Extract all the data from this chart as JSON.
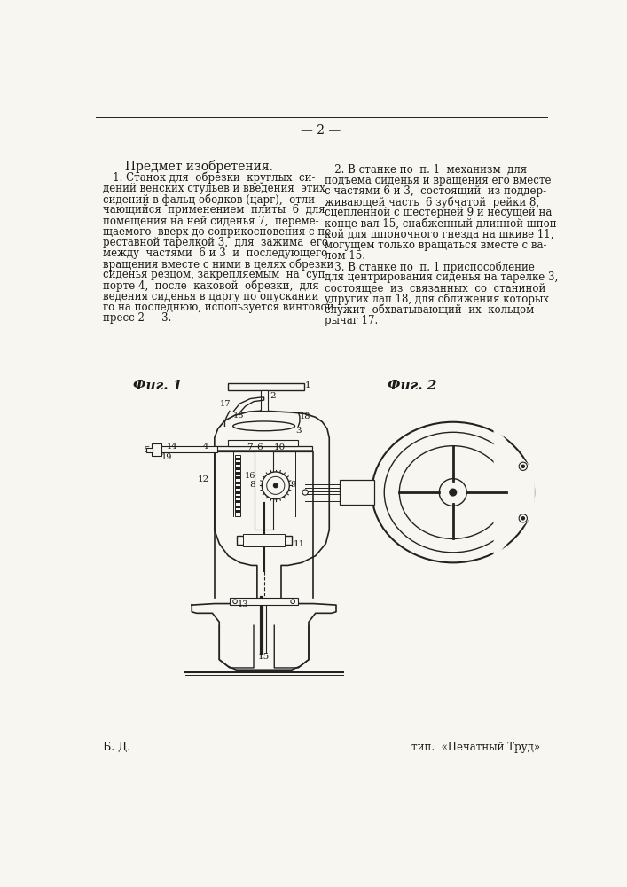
{
  "page_number": "— 2 —",
  "section_title": "Предмет изобретения.",
  "col1_text": [
    "   1. Станок для  обрезки  круглых  си-",
    "дений венских стульев и введения  этих",
    "сидений в фальц ободков (царг),  отли-",
    "чающийся  применением  плиты  6  для",
    "помещения на ней сиденья 7,  переме-",
    "щаемого  вверх до соприкосновения с пе-",
    "реставной тарелкой 3,  для  зажима  его",
    "между  частями  6 и 3  и  последующего",
    "вращения вместе с ними в целях обрезки",
    "сиденья резцом, закрепляемым  на  суп-",
    "порте 4,  после  каковой  обрезки,  для",
    "ведения сиденья в царгу по опускании",
    "го на последнюю, используется винтовой",
    "пресс 2 — 3."
  ],
  "col2_text": [
    "   2. В станке по  п. 1  механизм  для",
    "подъема сиденья и вращения его вместе",
    "с частями 6 и 3,  состоящий  из поддер-",
    "живающей часть  6 зубчатой  рейки 8,",
    "сцепленной с шестерней 9 и несущей на",
    "конце вал 15, снабженный длинной шпон-",
    "кой для шпоночного гнезда на шкиве 11,",
    "могущем только вращаться вместе с ва-",
    "лом 15.",
    "   3. В станке по  п. 1 приспособление",
    "для центрирования сиденья на тарелке 3,",
    "состоящее  из  связанных  со  станиной",
    "упругих лап 18, для сближения которых",
    "служит  обхватывающий  их  кольцом",
    "рычаг 17."
  ],
  "fig1_label": "Фиг. 1",
  "fig2_label": "Фиг. 2",
  "bottom_left": "Б. Д.",
  "bottom_right": "тип.  «Печатный Труд»",
  "bg_color": "#f8f6f0",
  "text_color": "#1a1a1a",
  "line_color": "#222222"
}
